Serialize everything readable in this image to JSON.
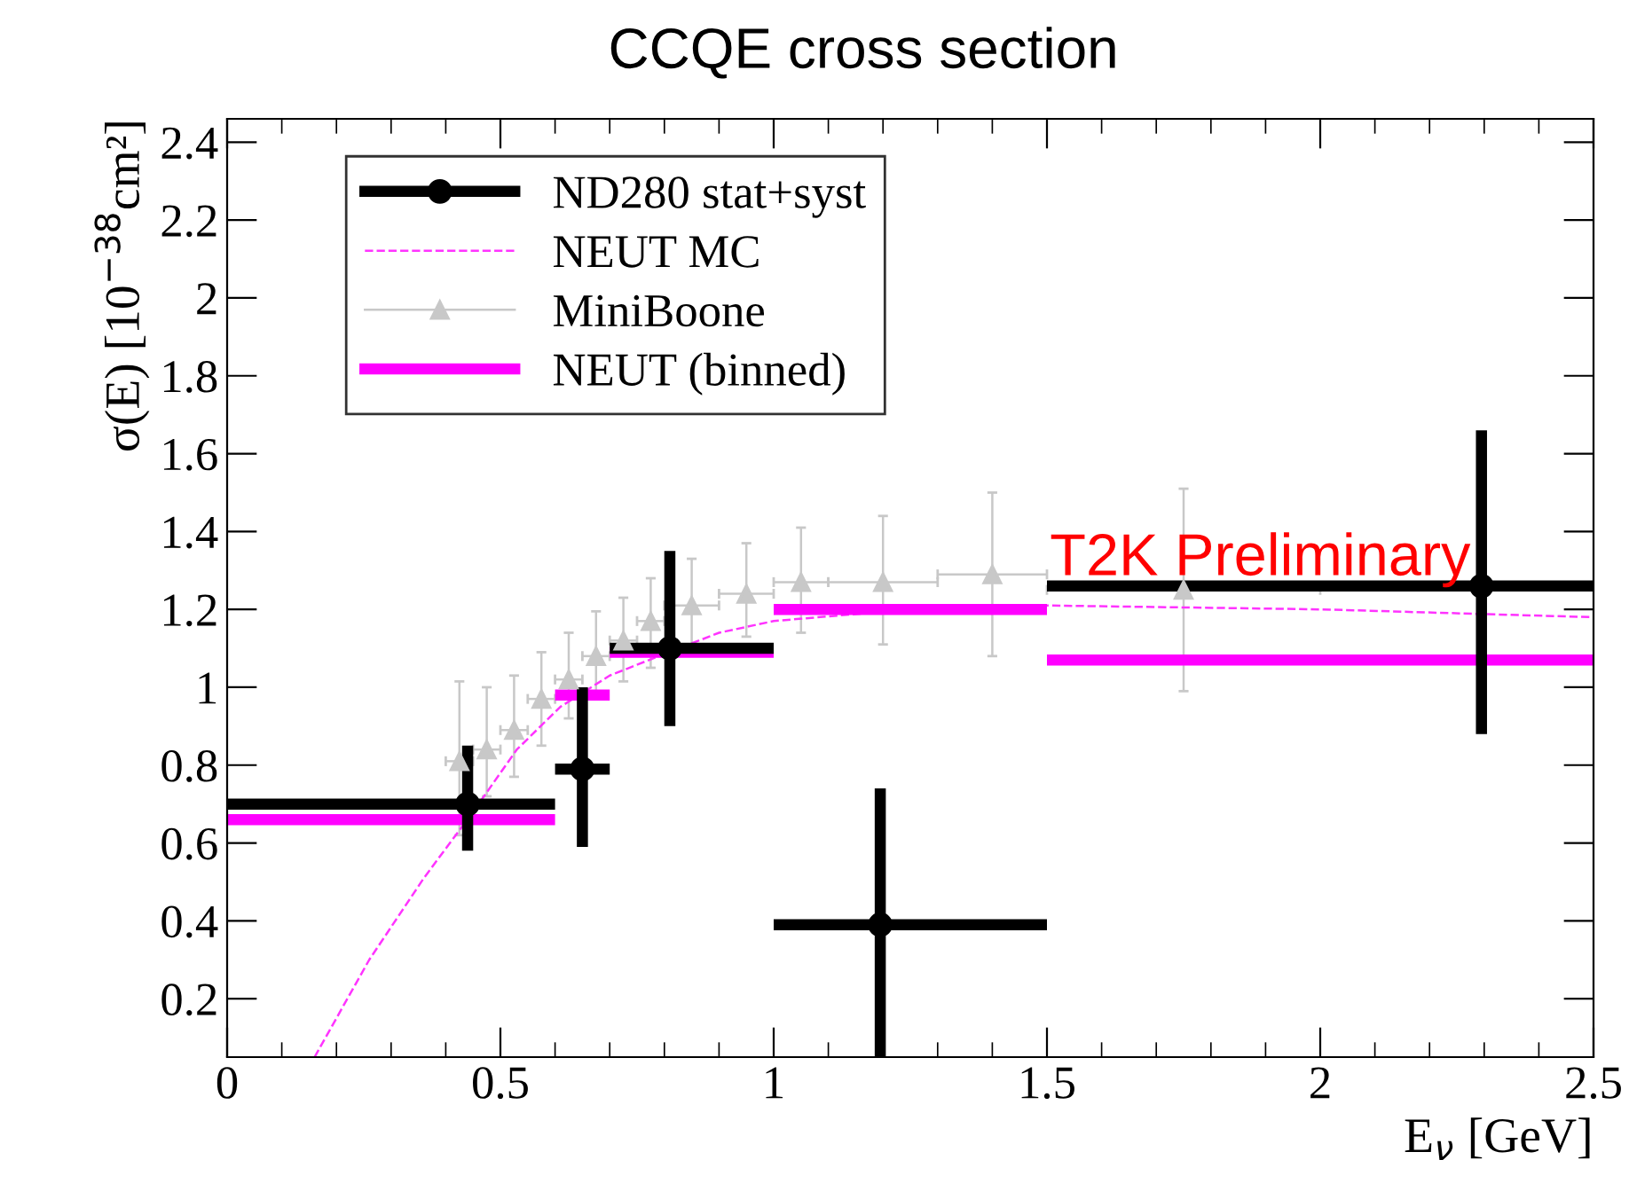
{
  "chart_data": {
    "type": "scatter",
    "title": "CCQE cross section",
    "xlabel": "E$_{ν}$ [GeV]",
    "ylabel": "σ(E) [10$^{−38}$cm²]",
    "xlim": [
      0,
      2.5
    ],
    "ylim": [
      0.05,
      2.46
    ],
    "xticks": [
      0,
      0.5,
      1,
      1.5,
      2,
      2.5
    ],
    "yticks": [
      0.2,
      0.4,
      0.6,
      0.8,
      1,
      1.2,
      1.4,
      1.6,
      1.8,
      2,
      2.2,
      2.4
    ],
    "grid": false,
    "legend": "top left",
    "annotations": [
      "T2K Preliminary"
    ],
    "series": [
      {
        "name": "ND280 stat+syst",
        "type": "scatter",
        "marker": "circle",
        "color": "#000000",
        "x": [
          0.44,
          0.65,
          0.81,
          1.195,
          2.295
        ],
        "values": [
          0.7,
          0.79,
          1.1,
          0.39,
          1.26
        ],
        "errors": [
          [
            0.58,
            0.85
          ],
          [
            0.59,
            1.0
          ],
          [
            0.9,
            1.35
          ],
          [
            0.05,
            0.74
          ],
          [
            0.88,
            1.66
          ]
        ],
        "xerrors": [
          [
            0,
            0.6
          ],
          [
            0.6,
            0.7
          ],
          [
            0.7,
            1.0
          ],
          [
            1.0,
            1.5
          ],
          [
            1.5,
            2.5
          ]
        ]
      },
      {
        "name": "NEUT MC",
        "type": "line",
        "marker": "none",
        "line_style": "dashed",
        "color": "#ff33ff",
        "x": [
          0.16,
          0.2,
          0.26,
          0.36,
          0.45,
          0.53,
          0.61,
          0.7,
          0.79,
          0.9,
          1.0,
          1.25,
          1.5,
          2.0,
          2.5
        ],
        "values": [
          0.05,
          0.15,
          0.3,
          0.51,
          0.68,
          0.84,
          0.95,
          1.03,
          1.08,
          1.14,
          1.17,
          1.2,
          1.21,
          1.2,
          1.18
        ]
      },
      {
        "name": "MiniBoone",
        "type": "scatter",
        "marker": "triangle",
        "color": "#c8c8c8",
        "x": [
          0.425,
          0.475,
          0.525,
          0.575,
          0.625,
          0.675,
          0.725,
          0.775,
          0.85,
          0.95,
          1.05,
          1.2,
          1.4,
          1.75
        ],
        "values": [
          0.81,
          0.84,
          0.89,
          0.97,
          1.02,
          1.08,
          1.12,
          1.17,
          1.21,
          1.24,
          1.27,
          1.27,
          1.29,
          1.25
        ],
        "errors": [
          [
            0.62,
            1.015
          ],
          [
            0.72,
            1.0
          ],
          [
            0.77,
            1.03
          ],
          [
            0.85,
            1.09
          ],
          [
            0.92,
            1.14
          ],
          [
            0.97,
            1.195
          ],
          [
            1.015,
            1.23
          ],
          [
            1.05,
            1.28
          ],
          [
            1.1,
            1.33
          ],
          [
            1.13,
            1.37
          ],
          [
            1.14,
            1.41
          ],
          [
            1.11,
            1.44
          ],
          [
            1.08,
            1.5
          ],
          [
            0.99,
            1.51
          ]
        ],
        "xerrors": [
          0.025,
          0.025,
          0.025,
          0.025,
          0.025,
          0.025,
          0.025,
          0.025,
          0.05,
          0.05,
          0.05,
          0.1,
          0.1,
          0.25
        ]
      },
      {
        "name": "NEUT (binned)",
        "type": "line",
        "marker": "none",
        "line_style": "solid",
        "color": "#ff00ff",
        "x": [
          0,
          0.6
        ],
        "values": [
          0.66,
          0.66
        ]
      },
      {
        "type": "line",
        "marker": "none",
        "line_style": "solid",
        "color": "#ff00ff",
        "x": [
          0.6,
          0.7
        ],
        "values": [
          0.98,
          0.98
        ]
      },
      {
        "type": "line",
        "marker": "none",
        "line_style": "solid",
        "color": "#ff00ff",
        "x": [
          0.7,
          1.0
        ],
        "values": [
          1.09,
          1.09
        ]
      },
      {
        "type": "line",
        "marker": "none",
        "line_style": "solid",
        "color": "#ff00ff",
        "x": [
          1.0,
          1.5
        ],
        "values": [
          1.2,
          1.2
        ]
      },
      {
        "type": "line",
        "marker": "none",
        "line_style": "solid",
        "color": "#ff00ff",
        "x": [
          1.5,
          2.5
        ],
        "values": [
          1.07,
          1.07
        ]
      }
    ]
  }
}
